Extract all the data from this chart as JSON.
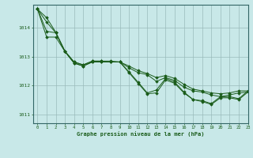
{
  "title": "Graphe pression niveau de la mer (hPa)",
  "background_color": "#c8e8e8",
  "grid_color": "#99bbbb",
  "line_color": "#1a5c1a",
  "marker_color": "#1a5c1a",
  "xlim": [
    -0.5,
    23
  ],
  "ylim": [
    1010.7,
    1014.8
  ],
  "yticks": [
    1011,
    1012,
    1013,
    1014
  ],
  "xticks": [
    0,
    1,
    2,
    3,
    4,
    5,
    6,
    7,
    8,
    9,
    10,
    11,
    12,
    13,
    14,
    15,
    16,
    17,
    18,
    19,
    20,
    21,
    22,
    23
  ],
  "series": [
    [
      1014.65,
      1014.35,
      1013.85,
      1013.2,
      1012.82,
      1012.72,
      1012.85,
      1012.85,
      1012.85,
      1012.82,
      1012.68,
      1012.52,
      1012.42,
      1012.28,
      1012.35,
      1012.25,
      1012.05,
      1011.88,
      1011.82,
      1011.75,
      1011.72,
      1011.75,
      1011.82,
      1011.82
    ],
    [
      1014.65,
      1014.2,
      1013.83,
      1013.18,
      1012.82,
      1012.72,
      1012.85,
      1012.85,
      1012.82,
      1012.82,
      1012.62,
      1012.45,
      1012.38,
      1012.15,
      1012.28,
      1012.18,
      1011.95,
      1011.82,
      1011.78,
      1011.68,
      1011.62,
      1011.68,
      1011.75,
      1011.78
    ],
    [
      1014.65,
      1013.88,
      1013.83,
      1013.18,
      1012.78,
      1012.68,
      1012.82,
      1012.82,
      1012.82,
      1012.82,
      1012.48,
      1012.12,
      1011.75,
      1011.85,
      1012.25,
      1012.12,
      1011.78,
      1011.52,
      1011.48,
      1011.38,
      1011.62,
      1011.62,
      1011.55,
      1011.82
    ],
    [
      1014.65,
      1013.68,
      1013.68,
      1013.18,
      1012.78,
      1012.68,
      1012.82,
      1012.82,
      1012.82,
      1012.82,
      1012.45,
      1012.08,
      1011.72,
      1011.75,
      1012.2,
      1012.08,
      1011.75,
      1011.52,
      1011.45,
      1011.35,
      1011.58,
      1011.58,
      1011.52,
      1011.78
    ]
  ]
}
